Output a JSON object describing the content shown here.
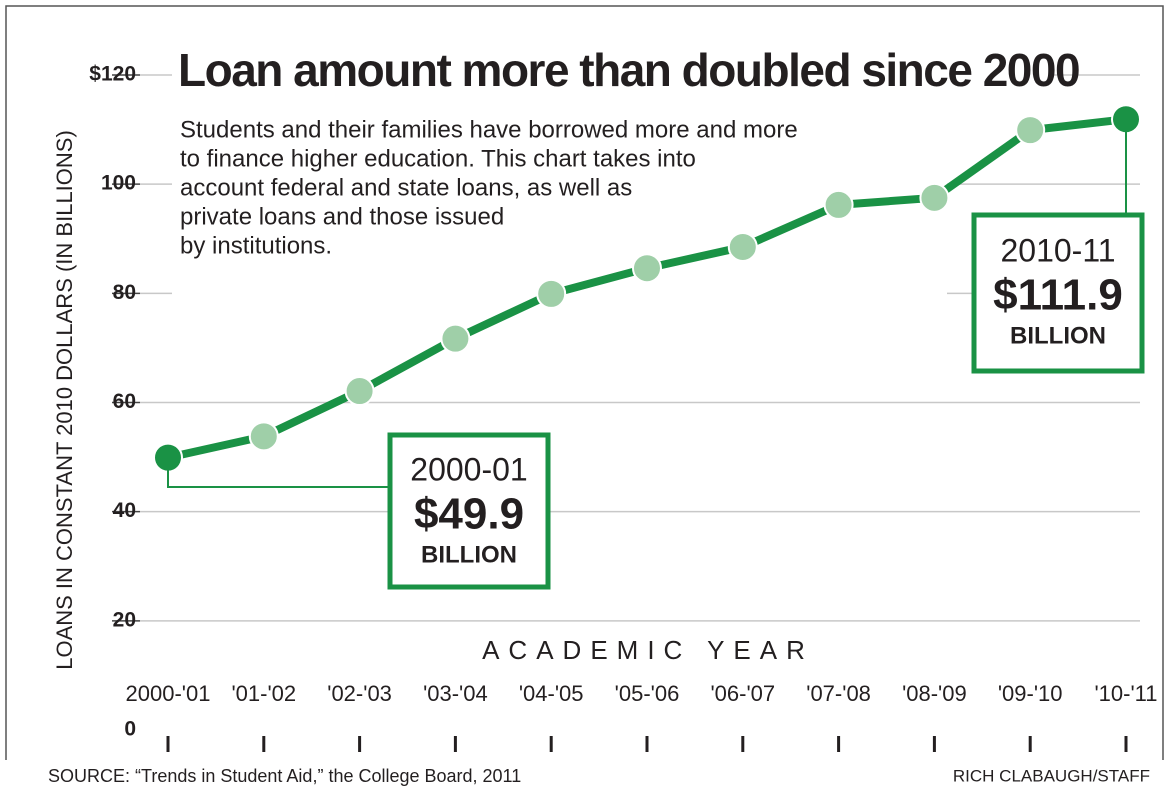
{
  "chart_data": {
    "type": "line",
    "title": "Loan amount more than doubled since 2000",
    "subtitle": [
      "Students and their families have borrowed more and more",
      "to finance higher education. This chart takes into",
      "account federal and state loans, as well as",
      "private loans and those issued",
      "by institutions."
    ],
    "y_label": "LOANS IN CONSTANT 2010 DOLLARS (IN BILLIONS)",
    "x_label": "ACADEMIC YEAR",
    "categories": [
      "2000-'01",
      "'01-'02",
      "'02-'03",
      "'03-'04",
      "'04-'05",
      "'05-'06",
      "'06-'07",
      "'07-'08",
      "'08-'09",
      "'09-'10",
      "'10-'11"
    ],
    "series": [
      {
        "name": "Loans",
        "color": "#1a9245",
        "marker_colors": [
          "#1a9245",
          "#9fcfa8",
          "#9fcfa8",
          "#9fcfa8",
          "#9fcfa8",
          "#9fcfa8",
          "#9fcfa8",
          "#9fcfa8",
          "#9fcfa8",
          "#9fcfa8",
          "#1a9245"
        ],
        "values": [
          49.9,
          53.8,
          62.1,
          71.7,
          79.9,
          84.6,
          88.5,
          96.2,
          97.5,
          109.9,
          111.9
        ]
      }
    ],
    "ylim": [
      0,
      120
    ],
    "yticks": [
      0,
      20,
      40,
      60,
      80,
      100,
      {
        "value": 120,
        "label": "$120"
      }
    ],
    "grid": true,
    "annotations": [
      {
        "period": "2000-01",
        "amount": "$49.9",
        "unit": "BILLION"
      },
      {
        "period": "2010-11",
        "amount": "$111.9",
        "unit": "BILLION"
      }
    ],
    "source": "SOURCE: “Trends in Student Aid,” the College Board, 2011",
    "credit": "RICH CLABAUGH/STAFF"
  }
}
